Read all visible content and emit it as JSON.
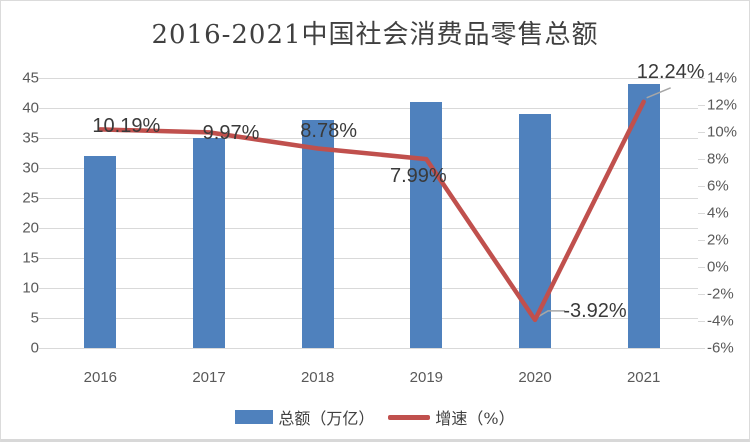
{
  "chart_data": {
    "type": "combo-bar-line",
    "title": "2016-2021中国社会消费品零售总额",
    "categories": [
      "2016",
      "2017",
      "2018",
      "2019",
      "2020",
      "2021"
    ],
    "series": [
      {
        "name": "总额（万亿）",
        "type": "bar",
        "axis": "left",
        "color": "#4F81BD",
        "values": [
          32,
          35,
          38,
          41,
          39,
          44
        ]
      },
      {
        "name": "增速（%）",
        "type": "line",
        "axis": "right",
        "color": "#C0504D",
        "values": [
          10.19,
          9.97,
          8.78,
          7.99,
          -3.92,
          12.24
        ],
        "point_labels": [
          "10.19%",
          "9.97%",
          "8.78%",
          "7.99%",
          "-3.92%",
          "12.24%"
        ]
      }
    ],
    "left_axis": {
      "min": 0,
      "max": 45,
      "step": 5,
      "tick_labels": [
        "0",
        "5",
        "10",
        "15",
        "20",
        "25",
        "30",
        "35",
        "40",
        "45"
      ]
    },
    "right_axis": {
      "min": -6,
      "max": 14,
      "step": 2,
      "tick_labels": [
        "-6%",
        "-4%",
        "-2%",
        "0%",
        "2%",
        "4%",
        "6%",
        "8%",
        "10%",
        "12%",
        "14%"
      ]
    },
    "grid": true,
    "legend_position": "bottom"
  },
  "colors": {
    "bar": "#4F81BD",
    "line": "#C0504D",
    "grid": "#D9D9D9",
    "axis_text": "#595959",
    "label_text": "#3A3A3A",
    "title_text": "#404040",
    "leader": "#A6A6A6"
  }
}
